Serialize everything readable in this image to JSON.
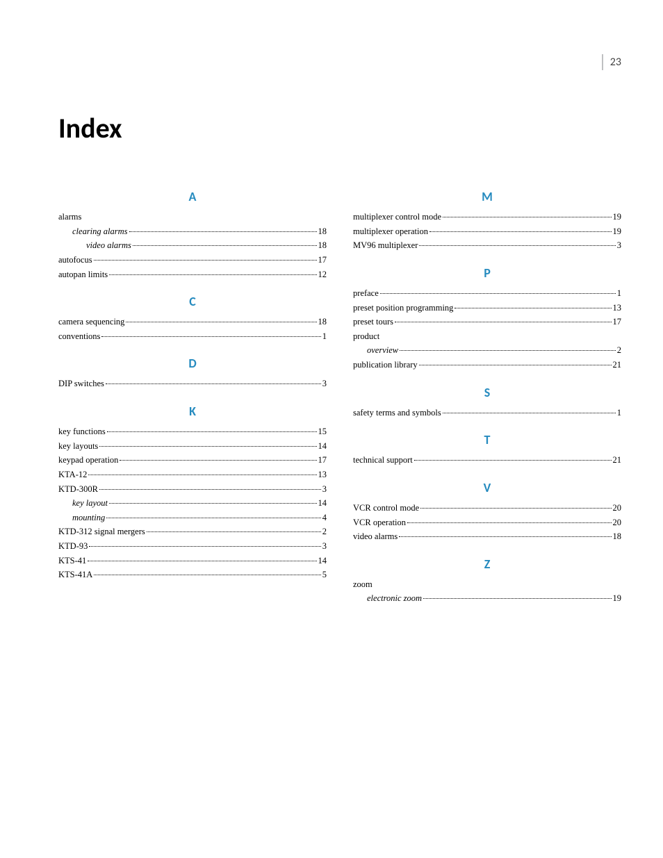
{
  "page_number": "23",
  "title": "Index",
  "heading_color": "#268bbf",
  "body_font": "Times New Roman",
  "heading_font": "Calibri",
  "body_color": "#000000",
  "background_color": "#ffffff",
  "col1": {
    "sections": [
      {
        "letter": "A",
        "entries": [
          {
            "term": "alarms",
            "page": null,
            "indent": 0,
            "italic": false
          },
          {
            "term": "clearing alarms",
            "page": "18",
            "indent": 1,
            "italic": true
          },
          {
            "term": "video alarms",
            "page": "18",
            "indent": 2,
            "italic": true
          },
          {
            "term": "autofocus",
            "page": "17",
            "indent": 0,
            "italic": false
          },
          {
            "term": "autopan limits",
            "page": "12",
            "indent": 0,
            "italic": false
          }
        ]
      },
      {
        "letter": "C",
        "entries": [
          {
            "term": "camera sequencing",
            "page": "18",
            "indent": 0,
            "italic": false
          },
          {
            "term": "conventions",
            "page": "1",
            "indent": 0,
            "italic": false
          }
        ]
      },
      {
        "letter": "D",
        "entries": [
          {
            "term": "DIP switches",
            "page": "3",
            "indent": 0,
            "italic": false
          }
        ]
      },
      {
        "letter": "K",
        "entries": [
          {
            "term": "key functions",
            "page": "15",
            "indent": 0,
            "italic": false
          },
          {
            "term": "key layouts",
            "page": "14",
            "indent": 0,
            "italic": false
          },
          {
            "term": "keypad operation",
            "page": "17",
            "indent": 0,
            "italic": false
          },
          {
            "term": "KTA-12",
            "page": "13",
            "indent": 0,
            "italic": false
          },
          {
            "term": "KTD-300R",
            "page": "3",
            "indent": 0,
            "italic": false
          },
          {
            "term": "key layout",
            "page": "14",
            "indent": 1,
            "italic": true
          },
          {
            "term": "mounting",
            "page": "4",
            "indent": 1,
            "italic": true
          },
          {
            "term": "KTD-312 signal mergers",
            "page": "2",
            "indent": 0,
            "italic": false
          },
          {
            "term": "KTD-93",
            "page": "3",
            "indent": 0,
            "italic": false
          },
          {
            "term": "KTS-41",
            "page": "14",
            "indent": 0,
            "italic": false
          },
          {
            "term": "KTS-41A",
            "page": "5",
            "indent": 0,
            "italic": false
          }
        ]
      }
    ]
  },
  "col2": {
    "sections": [
      {
        "letter": "M",
        "entries": [
          {
            "term": "multiplexer control mode",
            "page": "19",
            "indent": 0,
            "italic": false
          },
          {
            "term": "multiplexer operation",
            "page": "19",
            "indent": 0,
            "italic": false
          },
          {
            "term": "MV96 multiplexer",
            "page": "3",
            "indent": 0,
            "italic": false
          }
        ]
      },
      {
        "letter": "P",
        "entries": [
          {
            "term": "preface",
            "page": "1",
            "indent": 0,
            "italic": false
          },
          {
            "term": "preset position programming",
            "page": "13",
            "indent": 0,
            "italic": false
          },
          {
            "term": "preset tours",
            "page": "17",
            "indent": 0,
            "italic": false
          },
          {
            "term": "product",
            "page": null,
            "indent": 0,
            "italic": false
          },
          {
            "term": "overview",
            "page": "2",
            "indent": 1,
            "italic": true
          },
          {
            "term": "publication library",
            "page": "21",
            "indent": 0,
            "italic": false
          }
        ]
      },
      {
        "letter": "S",
        "entries": [
          {
            "term": "safety terms and symbols",
            "page": "1",
            "indent": 0,
            "italic": false
          }
        ]
      },
      {
        "letter": "T",
        "entries": [
          {
            "term": "technical support",
            "page": "21",
            "indent": 0,
            "italic": false
          }
        ]
      },
      {
        "letter": "V",
        "entries": [
          {
            "term": "VCR control mode",
            "page": "20",
            "indent": 0,
            "italic": false
          },
          {
            "term": "VCR operation",
            "page": "20",
            "indent": 0,
            "italic": false
          },
          {
            "term": "video alarms",
            "page": "18",
            "indent": 0,
            "italic": false
          }
        ]
      },
      {
        "letter": "Z",
        "entries": [
          {
            "term": "zoom",
            "page": null,
            "indent": 0,
            "italic": false
          },
          {
            "term": "electronic zoom",
            "page": "19",
            "indent": 1,
            "italic": true
          }
        ]
      }
    ]
  }
}
